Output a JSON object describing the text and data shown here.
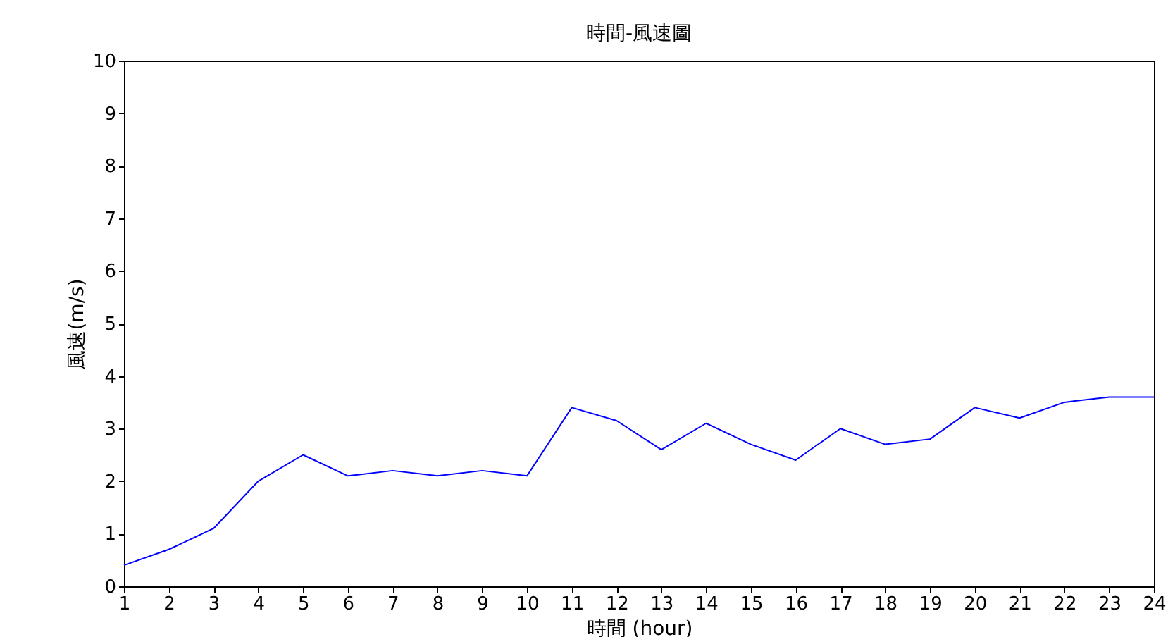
{
  "chart_data": {
    "type": "line",
    "title": "時間-風速圖",
    "xlabel": "時間 (hour)",
    "ylabel": "風速(m/s)",
    "x": [
      1,
      2,
      3,
      4,
      5,
      6,
      7,
      8,
      9,
      10,
      11,
      12,
      13,
      14,
      15,
      16,
      17,
      18,
      19,
      20,
      21,
      22,
      23,
      24
    ],
    "series": [
      {
        "color": "#0000ff",
        "values": [
          0.4,
          0.7,
          1.1,
          2.0,
          2.5,
          2.1,
          2.2,
          2.1,
          2.2,
          2.1,
          3.4,
          3.15,
          2.6,
          3.1,
          2.7,
          2.4,
          3.0,
          2.7,
          2.8,
          3.4,
          3.2,
          3.5,
          3.6,
          3.6
        ]
      }
    ],
    "xlim": [
      1,
      24
    ],
    "xticks": [
      1,
      2,
      3,
      4,
      5,
      6,
      7,
      8,
      9,
      10,
      11,
      12,
      13,
      14,
      15,
      16,
      17,
      18,
      19,
      20,
      21,
      22,
      23,
      24
    ],
    "ylim": [
      0,
      10
    ],
    "yticks": [
      0,
      1,
      2,
      3,
      4,
      5,
      6,
      7,
      8,
      9,
      10
    ],
    "grid": false,
    "legend": false,
    "marker": "none",
    "line_style": "solid"
  }
}
